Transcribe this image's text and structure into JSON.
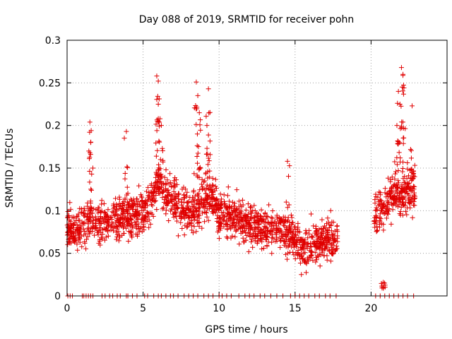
{
  "chart_data": {
    "type": "scatter",
    "title": "Day 088 of 2019, SRMTID for receiver pohn",
    "xlabel": "GPS time / hours",
    "ylabel": "SRMTID / TECUs",
    "xlim": [
      0,
      25
    ],
    "ylim": [
      0,
      0.3
    ],
    "grid": true,
    "marker": "+",
    "color": "#e00000",
    "xticks": [
      {
        "value": 0,
        "label": "0"
      },
      {
        "value": 5,
        "label": "5"
      },
      {
        "value": 10,
        "label": "10"
      },
      {
        "value": 15,
        "label": "15"
      },
      {
        "value": 20,
        "label": "20"
      }
    ],
    "yticks": [
      {
        "value": 0,
        "label": "0"
      },
      {
        "value": 0.05,
        "label": "0.05"
      },
      {
        "value": 0.1,
        "label": "0.1"
      },
      {
        "value": 0.15,
        "label": "0.15"
      },
      {
        "value": 0.2,
        "label": "0.2"
      },
      {
        "value": 0.25,
        "label": "0.25"
      },
      {
        "value": 0.3,
        "label": "0.3"
      }
    ],
    "series": [
      {
        "name": "SRMTID",
        "segments": [
          [
            0.0,
            17.8
          ],
          [
            20.2,
            22.9
          ]
        ],
        "level_profile": [
          [
            0.0,
            0.085
          ],
          [
            0.5,
            0.075
          ],
          [
            1.0,
            0.08
          ],
          [
            1.5,
            0.09
          ],
          [
            2.0,
            0.085
          ],
          [
            3.0,
            0.09
          ],
          [
            4.0,
            0.095
          ],
          [
            5.0,
            0.095
          ],
          [
            5.5,
            0.11
          ],
          [
            6.0,
            0.13
          ],
          [
            6.5,
            0.12
          ],
          [
            7.0,
            0.115
          ],
          [
            7.5,
            0.105
          ],
          [
            8.0,
            0.1
          ],
          [
            8.5,
            0.1
          ],
          [
            9.0,
            0.11
          ],
          [
            9.5,
            0.12
          ],
          [
            10.0,
            0.095
          ],
          [
            11.0,
            0.095
          ],
          [
            12.0,
            0.085
          ],
          [
            13.0,
            0.08
          ],
          [
            14.0,
            0.08
          ],
          [
            15.0,
            0.065
          ],
          [
            15.5,
            0.055
          ],
          [
            16.0,
            0.06
          ],
          [
            17.0,
            0.065
          ],
          [
            17.8,
            0.065
          ],
          [
            20.2,
            0.09
          ],
          [
            21.0,
            0.11
          ],
          [
            22.0,
            0.12
          ],
          [
            22.9,
            0.13
          ]
        ],
        "peaks": [
          {
            "x": 1.5,
            "y": 0.204
          },
          {
            "x": 1.55,
            "y": 0.18
          },
          {
            "x": 3.9,
            "y": 0.193
          },
          {
            "x": 5.9,
            "y": 0.258
          },
          {
            "x": 6.0,
            "y": 0.252
          },
          {
            "x": 6.0,
            "y": 0.225
          },
          {
            "x": 6.2,
            "y": 0.2
          },
          {
            "x": 8.5,
            "y": 0.251
          },
          {
            "x": 8.6,
            "y": 0.235
          },
          {
            "x": 8.7,
            "y": 0.215
          },
          {
            "x": 9.3,
            "y": 0.243
          },
          {
            "x": 9.2,
            "y": 0.2
          },
          {
            "x": 14.5,
            "y": 0.158
          },
          {
            "x": 21.7,
            "y": 0.2
          },
          {
            "x": 21.9,
            "y": 0.225
          },
          {
            "x": 22.0,
            "y": 0.268
          },
          {
            "x": 22.1,
            "y": 0.26
          },
          {
            "x": 21.8,
            "y": 0.24
          },
          {
            "x": 22.7,
            "y": 0.223
          },
          {
            "x": 20.8,
            "y": 0.016
          }
        ]
      }
    ],
    "zero_marks_note": "markers along y=0 at irregular times from 0 to 17.8 h and 20.2 to 22.9 h",
    "zero_mark_times": [
      0.05,
      0.2,
      0.35,
      1.0,
      1.1,
      1.25,
      1.4,
      1.55,
      1.7,
      2.3,
      2.5,
      2.8,
      3.0,
      3.3,
      3.5,
      3.9,
      4.0,
      4.3,
      4.6,
      5.1,
      5.3,
      5.7,
      6.0,
      6.2,
      6.5,
      6.8,
      7.0,
      7.3,
      7.7,
      8.0,
      8.3,
      8.6,
      9.0,
      9.3,
      9.6,
      10.0,
      10.2,
      10.5,
      10.8,
      11.3,
      11.7,
      12.0,
      12.3,
      12.7,
      13.0,
      13.4,
      13.8,
      14.2,
      14.7,
      15.0,
      15.3,
      15.6,
      15.9,
      16.3,
      16.6,
      17.0,
      17.3,
      17.7,
      20.3,
      20.6,
      20.9,
      21.2,
      21.5,
      21.8,
      22.1,
      22.4,
      22.8
    ]
  }
}
